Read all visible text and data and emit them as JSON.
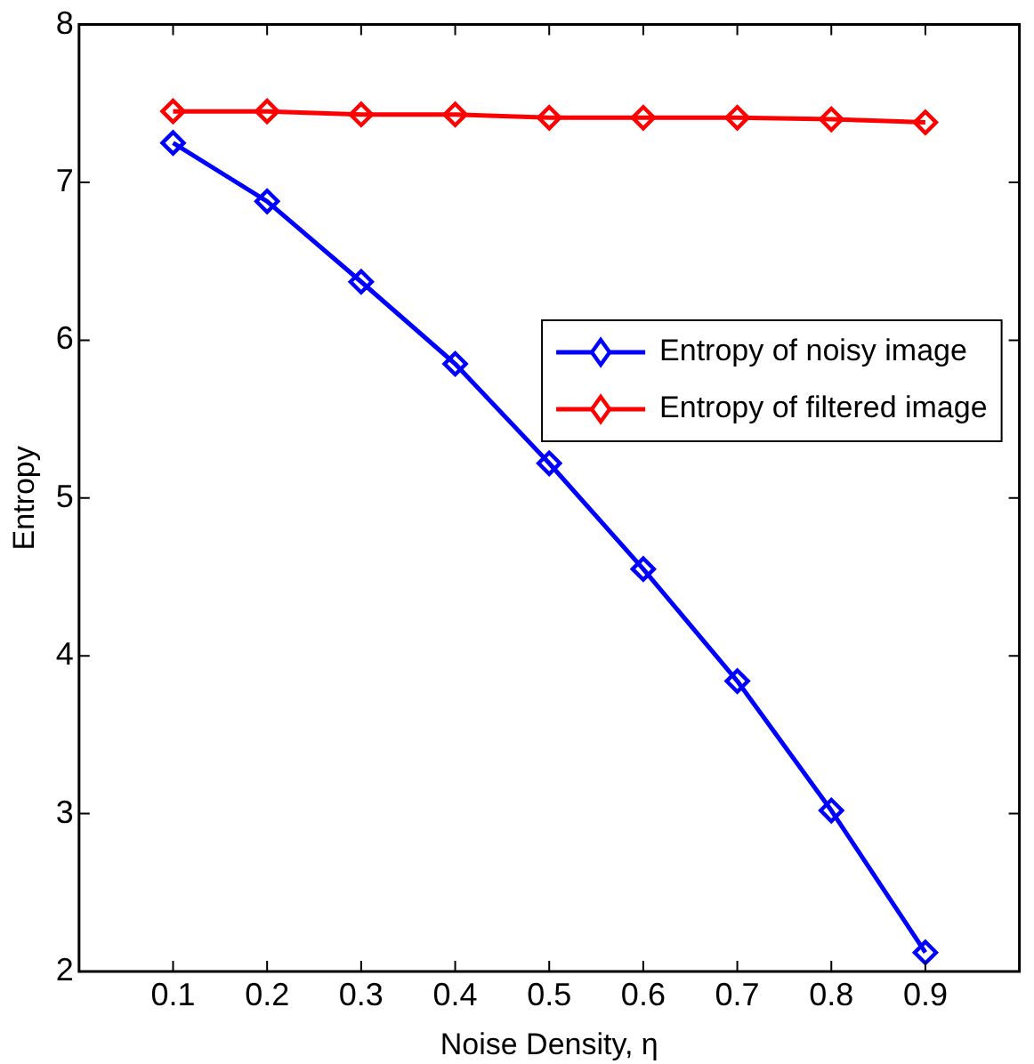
{
  "chart_data": {
    "type": "line",
    "xlabel": "Noise Density, η",
    "ylabel": "Entropy",
    "x": [
      0.1,
      0.2,
      0.3,
      0.4,
      0.5,
      0.6,
      0.7,
      0.8,
      0.9
    ],
    "series": [
      {
        "name": "Entropy of noisy image",
        "color": "#0000ff",
        "values": [
          7.25,
          6.88,
          6.37,
          5.85,
          5.22,
          4.55,
          3.84,
          3.02,
          2.12
        ]
      },
      {
        "name": "Entropy of filtered image",
        "color": "#ff0000",
        "values": [
          7.45,
          7.45,
          7.43,
          7.43,
          7.41,
          7.41,
          7.41,
          7.4,
          7.38
        ]
      }
    ],
    "xlim": [
      0,
      1
    ],
    "xticks": [
      0.1,
      0.2,
      0.3,
      0.4,
      0.5,
      0.6,
      0.7,
      0.8,
      0.9
    ],
    "ylim": [
      2,
      8
    ],
    "yticks": [
      2,
      3,
      4,
      5,
      6,
      7,
      8
    ],
    "grid": false,
    "legend": "top right",
    "marker": "diamond",
    "line_style": "solid"
  }
}
